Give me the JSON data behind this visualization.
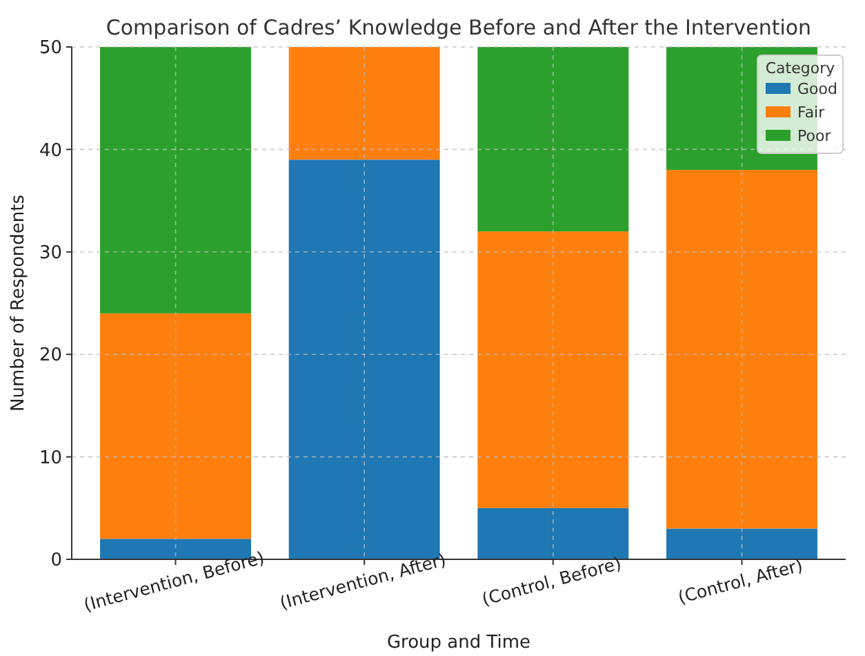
{
  "chart_data": {
    "type": "bar",
    "title": "Comparison of Cadres’ Knowledge Before and After the Intervention",
    "xlabel": "Group and Time",
    "ylabel": "Number of Respondents",
    "legend_title": "Category",
    "categories": [
      "(Intervention, Before)",
      "(Intervention, After)",
      "(Control, Before)",
      "(Control, After)"
    ],
    "series": [
      {
        "name": "Good",
        "color": "#1f77b4",
        "values": [
          2,
          39,
          5,
          3
        ]
      },
      {
        "name": "Fair",
        "color": "#ff7f0e",
        "values": [
          22,
          11,
          27,
          35
        ]
      },
      {
        "name": "Poor",
        "color": "#2ca02c",
        "values": [
          26,
          0,
          18,
          12
        ]
      }
    ],
    "stacked": true,
    "ylim": [
      0,
      50
    ],
    "yticks": [
      0,
      10,
      20,
      30,
      40,
      50
    ],
    "grid": true,
    "legend": "top right"
  }
}
